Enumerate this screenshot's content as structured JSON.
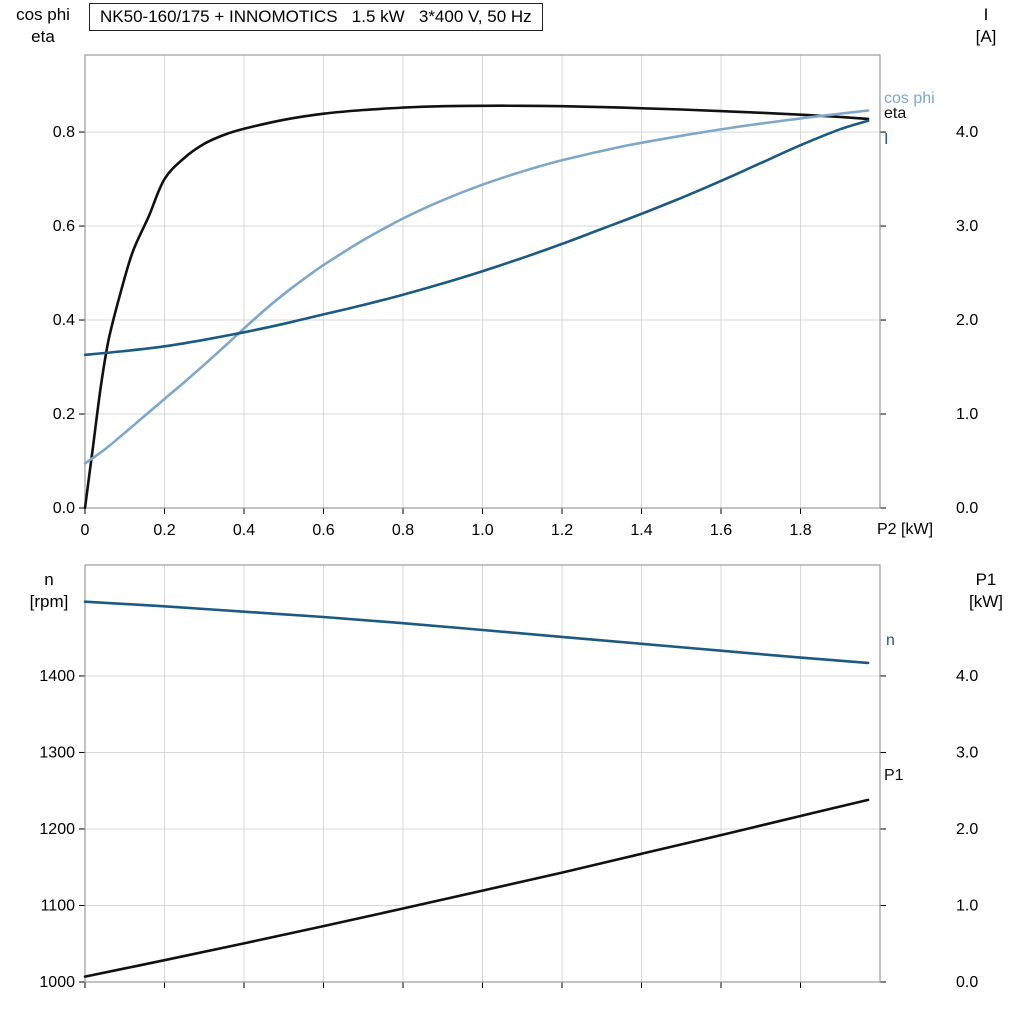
{
  "header": {
    "title": "NK50-160/175 + INNOMOTICS   1.5 kW   3*400 V, 50 Hz"
  },
  "axis_titles": {
    "upper_left_line1": "cos phi",
    "upper_left_line2": "eta",
    "upper_right_line1": "I",
    "upper_right_line2": "[A]",
    "lower_left_line1": "n",
    "lower_left_line2": "[rpm]",
    "lower_right_line1": "P1",
    "lower_right_line2": "[kW]",
    "x_axis_label": "P2 [kW]"
  },
  "curve_labels": {
    "cos_phi": "cos phi",
    "eta": "eta",
    "current": "I",
    "speed": "n",
    "power_in": "P1"
  },
  "colors": {
    "black": "#111111",
    "light_blue": "#7fa7c9",
    "dark_blue": "#1c5a84",
    "grid": "#d8d8d8",
    "border": "#9b9b9b",
    "text": "#000000"
  },
  "chart_data": [
    {
      "type": "line",
      "title": "NK50-160/175 + INNOMOTICS   1.5 kW   3*400 V, 50 Hz",
      "xlabel": "P2 [kW]",
      "grid": true,
      "legend_position": "right-end-of-curves",
      "x_range": [
        0,
        2.0
      ],
      "x_ticks": [
        0,
        0.2,
        0.4,
        0.6,
        0.8,
        1.0,
        1.2,
        1.4,
        1.6,
        1.8
      ],
      "x_tick_labels": [
        "0",
        "0.2",
        "0.4",
        "0.6",
        "0.8",
        "1.0",
        "1.2",
        "1.4",
        "1.6",
        "1.8"
      ],
      "left_axis": {
        "title": "cos phi, eta",
        "range": [
          0,
          0.964
        ],
        "ticks": [
          0,
          0.2,
          0.4,
          0.6,
          0.8
        ],
        "tick_labels": [
          "0.0",
          "0.2",
          "0.4",
          "0.6",
          "0.8"
        ]
      },
      "right_axis": {
        "title": "I [A]",
        "range": [
          0,
          4.82
        ],
        "ticks": [
          0,
          1.0,
          2.0,
          3.0,
          4.0
        ],
        "tick_labels": [
          "0.0",
          "1.0",
          "2.0",
          "3.0",
          "4.0"
        ]
      },
      "series": [
        {
          "name": "eta",
          "axis": "left",
          "color": "black",
          "points": [
            [
              0,
              0
            ],
            [
              0.02,
              0.13
            ],
            [
              0.04,
              0.26
            ],
            [
              0.06,
              0.36
            ],
            [
              0.09,
              0.46
            ],
            [
              0.12,
              0.545
            ],
            [
              0.16,
              0.62
            ],
            [
              0.2,
              0.7
            ],
            [
              0.25,
              0.745
            ],
            [
              0.3,
              0.775
            ],
            [
              0.35,
              0.794
            ],
            [
              0.4,
              0.807
            ],
            [
              0.5,
              0.826
            ],
            [
              0.6,
              0.839
            ],
            [
              0.7,
              0.847
            ],
            [
              0.8,
              0.852
            ],
            [
              0.9,
              0.855
            ],
            [
              1.0,
              0.856
            ],
            [
              1.1,
              0.856
            ],
            [
              1.2,
              0.855
            ],
            [
              1.35,
              0.852
            ],
            [
              1.5,
              0.848
            ],
            [
              1.65,
              0.843
            ],
            [
              1.8,
              0.837
            ],
            [
              1.9,
              0.832
            ],
            [
              1.97,
              0.828
            ]
          ]
        },
        {
          "name": "cos phi",
          "axis": "left",
          "color": "light_blue",
          "points": [
            [
              0,
              0.095
            ],
            [
              0.05,
              0.125
            ],
            [
              0.1,
              0.16
            ],
            [
              0.15,
              0.196
            ],
            [
              0.2,
              0.232
            ],
            [
              0.25,
              0.268
            ],
            [
              0.3,
              0.305
            ],
            [
              0.35,
              0.343
            ],
            [
              0.4,
              0.382
            ],
            [
              0.45,
              0.42
            ],
            [
              0.5,
              0.455
            ],
            [
              0.55,
              0.487
            ],
            [
              0.6,
              0.517
            ],
            [
              0.7,
              0.57
            ],
            [
              0.8,
              0.616
            ],
            [
              0.9,
              0.655
            ],
            [
              1.0,
              0.688
            ],
            [
              1.1,
              0.716
            ],
            [
              1.2,
              0.74
            ],
            [
              1.35,
              0.769
            ],
            [
              1.5,
              0.792
            ],
            [
              1.65,
              0.812
            ],
            [
              1.8,
              0.829
            ],
            [
              1.9,
              0.839
            ],
            [
              1.97,
              0.846
            ]
          ]
        },
        {
          "name": "I",
          "axis": "right",
          "color": "dark_blue",
          "points": [
            [
              0,
              1.63
            ],
            [
              0.1,
              1.67
            ],
            [
              0.2,
              1.72
            ],
            [
              0.3,
              1.79
            ],
            [
              0.4,
              1.87
            ],
            [
              0.5,
              1.96
            ],
            [
              0.6,
              2.06
            ],
            [
              0.7,
              2.16
            ],
            [
              0.8,
              2.27
            ],
            [
              0.9,
              2.39
            ],
            [
              1.0,
              2.52
            ],
            [
              1.1,
              2.66
            ],
            [
              1.2,
              2.81
            ],
            [
              1.3,
              2.97
            ],
            [
              1.4,
              3.13
            ],
            [
              1.5,
              3.3
            ],
            [
              1.6,
              3.48
            ],
            [
              1.7,
              3.67
            ],
            [
              1.8,
              3.86
            ],
            [
              1.9,
              4.03
            ],
            [
              1.97,
              4.12
            ]
          ]
        }
      ]
    },
    {
      "type": "line",
      "title": "",
      "xlabel": "",
      "grid": true,
      "x_range": [
        0,
        2.0
      ],
      "x_ticks": [
        0,
        0.2,
        0.4,
        0.6,
        0.8,
        1.0,
        1.2,
        1.4,
        1.6,
        1.8
      ],
      "x_tick_labels": [],
      "left_axis": {
        "title": "n [rpm]",
        "range": [
          1000,
          1545
        ],
        "ticks": [
          1000,
          1100,
          1200,
          1300,
          1400
        ],
        "tick_labels": [
          "1000",
          "1100",
          "1200",
          "1300",
          "1400"
        ]
      },
      "right_axis": {
        "title": "P1 [kW]",
        "range": [
          0,
          5.45
        ],
        "ticks": [
          0,
          1.0,
          2.0,
          3.0,
          4.0
        ],
        "tick_labels": [
          "0.0",
          "1.0",
          "2.0",
          "3.0",
          "4.0"
        ]
      },
      "series": [
        {
          "name": "n",
          "axis": "left",
          "color": "dark_blue",
          "points": [
            [
              0,
              1497
            ],
            [
              0.2,
              1491
            ],
            [
              0.4,
              1484
            ],
            [
              0.6,
              1477
            ],
            [
              0.8,
              1469
            ],
            [
              1.0,
              1460
            ],
            [
              1.2,
              1451
            ],
            [
              1.4,
              1442
            ],
            [
              1.6,
              1433
            ],
            [
              1.8,
              1424
            ],
            [
              1.97,
              1417
            ]
          ]
        },
        {
          "name": "P1",
          "axis": "right",
          "color": "black",
          "points": [
            [
              0,
              0.07
            ],
            [
              0.2,
              0.285
            ],
            [
              0.4,
              0.505
            ],
            [
              0.6,
              0.73
            ],
            [
              0.8,
              0.96
            ],
            [
              1.0,
              1.195
            ],
            [
              1.2,
              1.43
            ],
            [
              1.4,
              1.675
            ],
            [
              1.6,
              1.92
            ],
            [
              1.8,
              2.17
            ],
            [
              1.97,
              2.38
            ]
          ]
        }
      ]
    }
  ]
}
